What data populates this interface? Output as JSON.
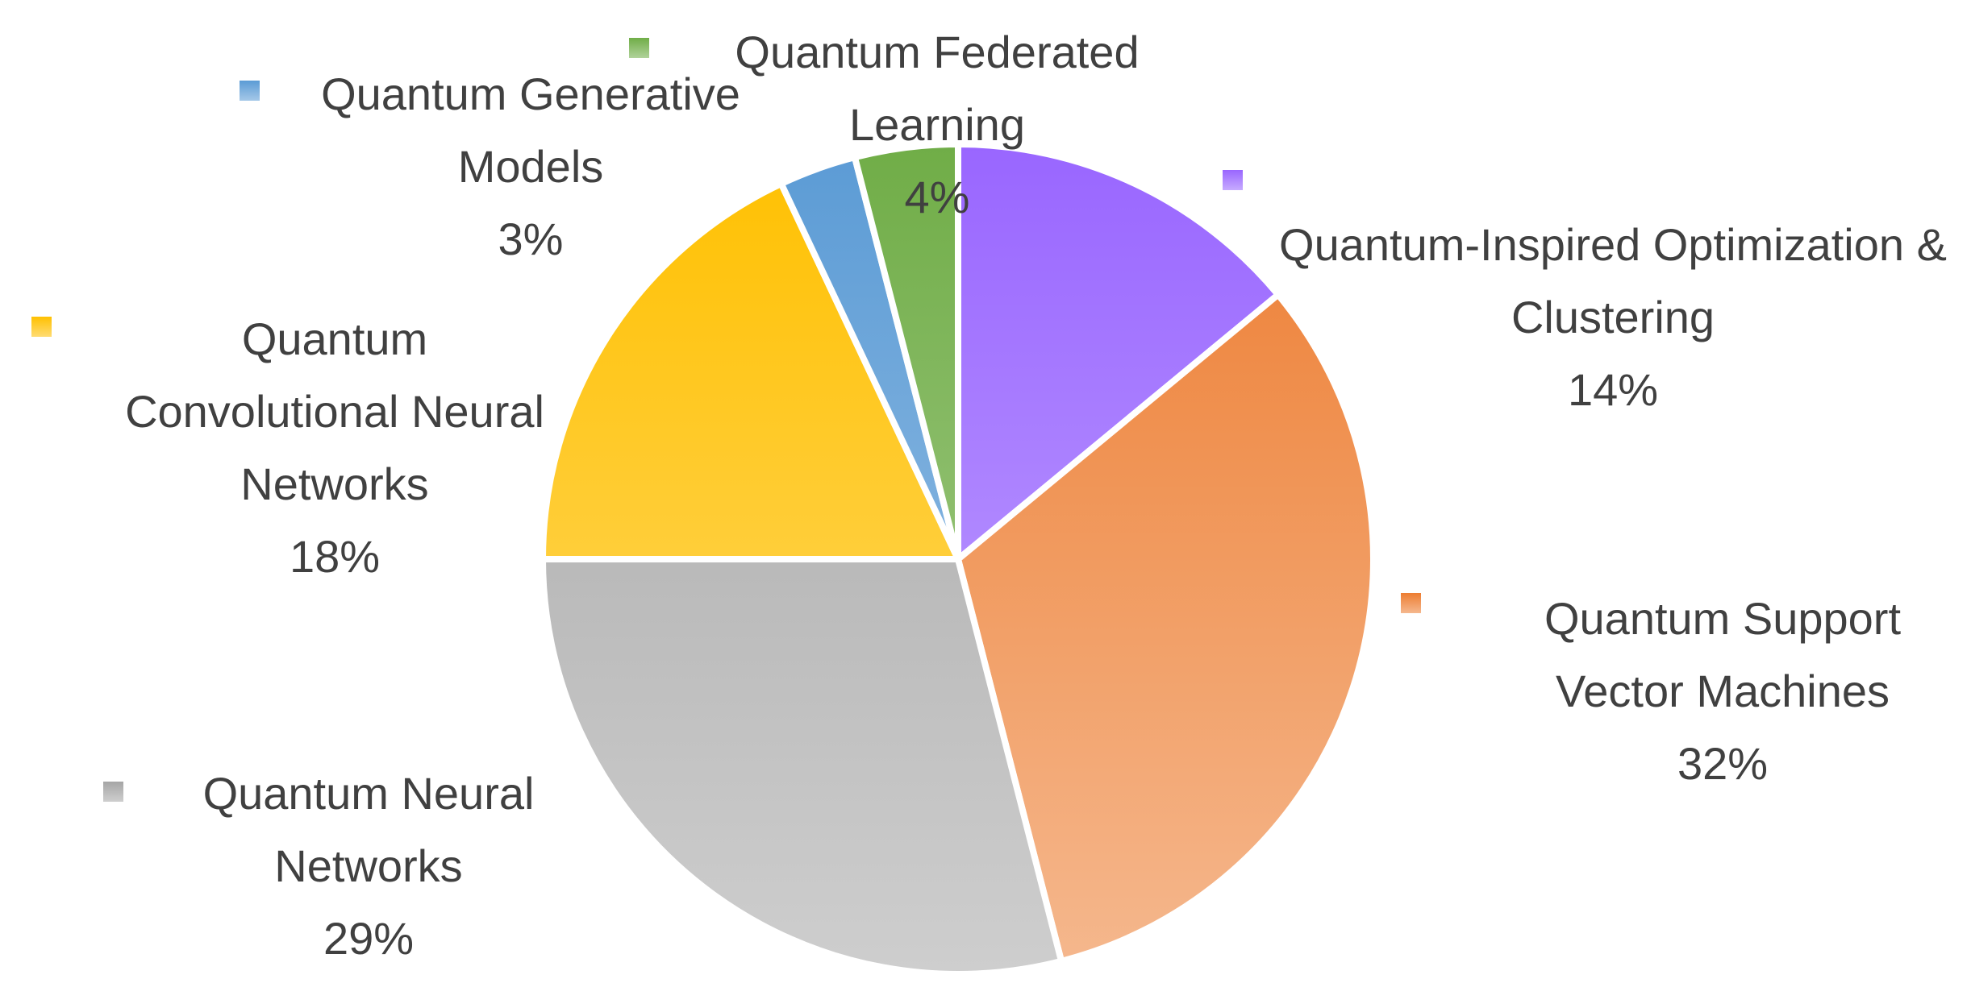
{
  "chart_data": {
    "type": "pie",
    "categories": [
      "Quantum-Inspired Optimization & Clustering",
      "Quantum Support Vector Machines",
      "Quantum Neural Networks",
      "Quantum Convolutional Neural Networks",
      "Quantum Generative Models",
      "Quantum Federated Learning"
    ],
    "values": [
      14,
      32,
      29,
      18,
      3,
      4
    ],
    "value_labels": [
      "14%",
      "32%",
      "29%",
      "18%",
      "3%",
      "4%"
    ],
    "colors": [
      "#9966ff",
      "#ed7d31",
      "#a5a5a5",
      "#ffc000",
      "#5b9bd5",
      "#70ad47"
    ]
  }
}
